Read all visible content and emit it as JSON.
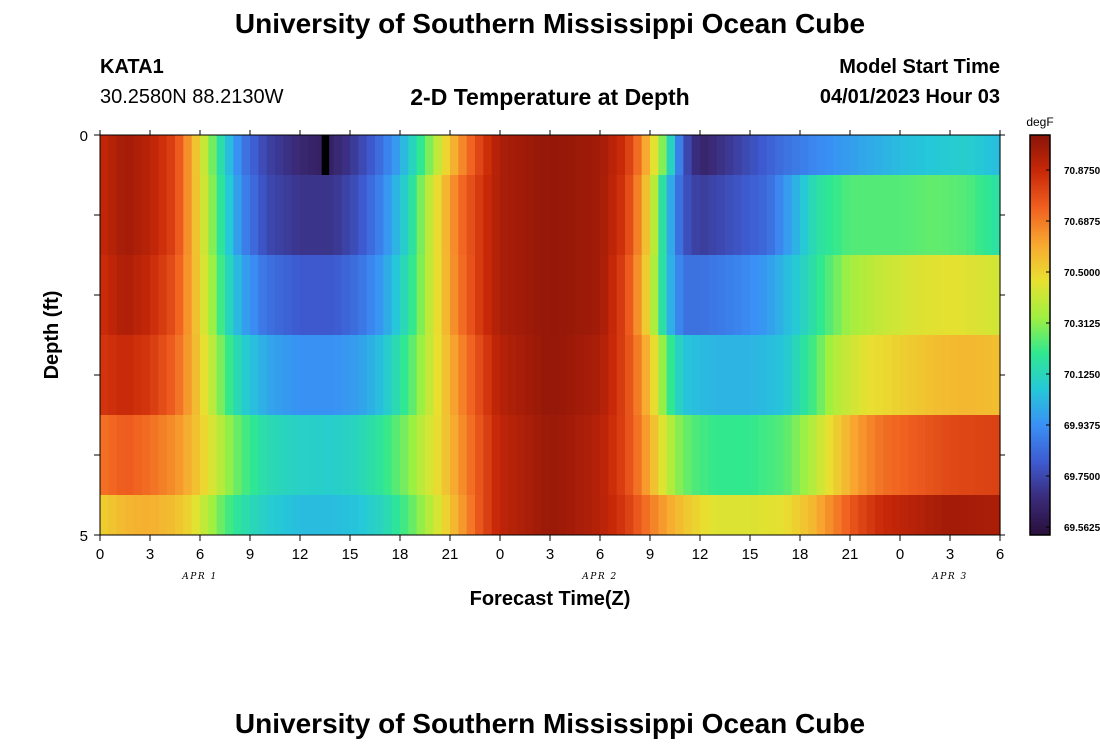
{
  "header": {
    "title": "University of Southern Mississippi Ocean Cube",
    "station_id": "KATA1",
    "coordinates": "30.2580N  88.2130W",
    "subtitle": "2-D Temperature at Depth",
    "model_start_label": "Model Start Time",
    "model_start_value": "04/01/2023 Hour 03"
  },
  "footer": {
    "title": "University of Southern Mississippi Ocean Cube"
  },
  "colors": {
    "scale": [
      "#2a0f3a",
      "#3a2a78",
      "#3e5ad0",
      "#3a8ff5",
      "#25c8d8",
      "#30e890",
      "#a0f040",
      "#e8e030",
      "#f8a830",
      "#f06020",
      "#c82808",
      "#8a1408"
    ]
  },
  "chart_data": {
    "type": "heatmap",
    "title": "2-D Temperature at Depth",
    "xlabel": "Forecast Time(Z)",
    "ylabel": "Depth (ft)",
    "x_tick_labels": [
      "0",
      "3",
      "6",
      "9",
      "12",
      "15",
      "18",
      "21",
      "0",
      "3",
      "6",
      "9",
      "12",
      "15",
      "18",
      "21",
      "0",
      "3",
      "6"
    ],
    "date_labels": [
      {
        "label": "APR 1",
        "hour": 6
      },
      {
        "label": "APR 2",
        "hour": 30
      },
      {
        "label": "APR 3",
        "hour": 51
      }
    ],
    "x_range_hours": [
      0,
      54
    ],
    "y_tick_labels": [
      "0",
      "5"
    ],
    "y_range_ft": [
      0,
      5
    ],
    "depth_rows_ft": [
      0.25,
      1.0,
      2.0,
      3.0,
      4.0,
      4.75
    ],
    "colorbar": {
      "units": "degF",
      "labels": [
        "70.8750",
        "70.6875",
        "70.5000",
        "70.3125",
        "70.1250",
        "69.9375",
        "69.7500",
        "69.5625"
      ],
      "min": 69.5,
      "max": 70.95
    },
    "profiles": [
      {
        "depth_row": 0,
        "points": [
          [
            0,
            70.82
          ],
          [
            1.5,
            70.9
          ],
          [
            3,
            70.85
          ],
          [
            4.5,
            70.75
          ],
          [
            5.5,
            70.55
          ],
          [
            6.5,
            70.3
          ],
          [
            7.5,
            70.05
          ],
          [
            8.5,
            69.85
          ],
          [
            10,
            69.7
          ],
          [
            12,
            69.62
          ],
          [
            13.5,
            69.58
          ],
          [
            15,
            69.66
          ],
          [
            16.5,
            69.78
          ],
          [
            18,
            69.95
          ],
          [
            19.5,
            70.2
          ],
          [
            20.5,
            70.4
          ],
          [
            21.5,
            70.58
          ],
          [
            23,
            70.78
          ],
          [
            24,
            70.88
          ],
          [
            27,
            70.93
          ],
          [
            30,
            70.9
          ],
          [
            31.5,
            70.8
          ],
          [
            32.5,
            70.62
          ],
          [
            33.5,
            70.35
          ],
          [
            34.3,
            70.05
          ],
          [
            35,
            69.75
          ],
          [
            36,
            69.6
          ],
          [
            37,
            69.64
          ],
          [
            39,
            69.73
          ],
          [
            41,
            69.82
          ],
          [
            43,
            69.88
          ],
          [
            45,
            69.93
          ],
          [
            48,
            70.0
          ],
          [
            50,
            70.03
          ],
          [
            52,
            70.05
          ],
          [
            54,
            70.0
          ]
        ]
      },
      {
        "depth_row": 1,
        "points": [
          [
            0,
            70.82
          ],
          [
            1.5,
            70.9
          ],
          [
            3,
            70.85
          ],
          [
            4.5,
            70.75
          ],
          [
            5.5,
            70.55
          ],
          [
            6.5,
            70.32
          ],
          [
            7.5,
            70.08
          ],
          [
            8.5,
            69.88
          ],
          [
            10,
            69.72
          ],
          [
            12,
            69.66
          ],
          [
            14,
            69.66
          ],
          [
            15.5,
            69.74
          ],
          [
            17,
            69.88
          ],
          [
            18.5,
            70.08
          ],
          [
            19.5,
            70.3
          ],
          [
            20.5,
            70.48
          ],
          [
            21.5,
            70.65
          ],
          [
            23,
            70.8
          ],
          [
            24,
            70.88
          ],
          [
            27,
            70.93
          ],
          [
            30,
            70.9
          ],
          [
            31.5,
            70.78
          ],
          [
            32.5,
            70.58
          ],
          [
            33.3,
            70.32
          ],
          [
            34,
            70.02
          ],
          [
            35,
            69.75
          ],
          [
            36,
            69.68
          ],
          [
            38,
            69.74
          ],
          [
            40,
            69.8
          ],
          [
            41.5,
            69.95
          ],
          [
            43,
            70.12
          ],
          [
            45,
            70.2
          ],
          [
            48,
            70.2
          ],
          [
            50,
            70.22
          ],
          [
            52,
            70.2
          ],
          [
            54,
            70.12
          ]
        ]
      },
      {
        "depth_row": 2,
        "points": [
          [
            0,
            70.8
          ],
          [
            1.5,
            70.88
          ],
          [
            3,
            70.82
          ],
          [
            4.5,
            70.72
          ],
          [
            5.5,
            70.55
          ],
          [
            6.5,
            70.34
          ],
          [
            7.5,
            70.12
          ],
          [
            8.5,
            69.95
          ],
          [
            10,
            69.82
          ],
          [
            12,
            69.76
          ],
          [
            14,
            69.76
          ],
          [
            15.5,
            69.82
          ],
          [
            17,
            69.93
          ],
          [
            18.5,
            70.12
          ],
          [
            19.5,
            70.3
          ],
          [
            20.5,
            70.48
          ],
          [
            21.5,
            70.64
          ],
          [
            23,
            70.8
          ],
          [
            24,
            70.88
          ],
          [
            27,
            70.93
          ],
          [
            30,
            70.9
          ],
          [
            31.5,
            70.75
          ],
          [
            32.5,
            70.55
          ],
          [
            33.3,
            70.3
          ],
          [
            34,
            70.02
          ],
          [
            35,
            69.82
          ],
          [
            36,
            69.82
          ],
          [
            38,
            69.86
          ],
          [
            40,
            69.92
          ],
          [
            42,
            70.05
          ],
          [
            43.5,
            70.18
          ],
          [
            45,
            70.3
          ],
          [
            47,
            70.36
          ],
          [
            49,
            70.4
          ],
          [
            51,
            70.42
          ],
          [
            54,
            70.38
          ]
        ]
      },
      {
        "depth_row": 3,
        "points": [
          [
            0,
            70.78
          ],
          [
            1.5,
            70.82
          ],
          [
            3,
            70.78
          ],
          [
            4.5,
            70.68
          ],
          [
            5.5,
            70.55
          ],
          [
            6.5,
            70.38
          ],
          [
            7.5,
            70.2
          ],
          [
            8.5,
            70.06
          ],
          [
            10,
            69.95
          ],
          [
            12,
            69.9
          ],
          [
            14,
            69.9
          ],
          [
            15.5,
            69.93
          ],
          [
            17,
            70.02
          ],
          [
            18.5,
            70.18
          ],
          [
            19.5,
            70.32
          ],
          [
            20.5,
            70.46
          ],
          [
            21.5,
            70.6
          ],
          [
            23,
            70.76
          ],
          [
            24,
            70.86
          ],
          [
            27,
            70.93
          ],
          [
            30,
            70.88
          ],
          [
            31.5,
            70.75
          ],
          [
            32.5,
            70.6
          ],
          [
            33.3,
            70.42
          ],
          [
            34,
            70.2
          ],
          [
            35,
            70.02
          ],
          [
            37,
            69.98
          ],
          [
            39,
            69.98
          ],
          [
            41,
            70.02
          ],
          [
            42.5,
            70.15
          ],
          [
            44,
            70.32
          ],
          [
            46,
            70.42
          ],
          [
            48,
            70.46
          ],
          [
            50,
            70.5
          ],
          [
            52,
            70.52
          ],
          [
            54,
            70.5
          ]
        ]
      },
      {
        "depth_row": 4,
        "points": [
          [
            0,
            70.65
          ],
          [
            1.5,
            70.7
          ],
          [
            3,
            70.66
          ],
          [
            4.5,
            70.6
          ],
          [
            5.5,
            70.52
          ],
          [
            6.5,
            70.42
          ],
          [
            7.5,
            70.3
          ],
          [
            8.5,
            70.2
          ],
          [
            10,
            70.1
          ],
          [
            12,
            70.06
          ],
          [
            14,
            70.05
          ],
          [
            15.5,
            70.08
          ],
          [
            17,
            70.15
          ],
          [
            18.5,
            70.26
          ],
          [
            19.5,
            70.36
          ],
          [
            20.5,
            70.46
          ],
          [
            21.5,
            70.58
          ],
          [
            23,
            70.74
          ],
          [
            24,
            70.84
          ],
          [
            27,
            70.92
          ],
          [
            30,
            70.86
          ],
          [
            31.5,
            70.75
          ],
          [
            32.5,
            70.62
          ],
          [
            33.5,
            70.45
          ],
          [
            34.5,
            70.28
          ],
          [
            35.5,
            70.2
          ],
          [
            37,
            70.16
          ],
          [
            39,
            70.16
          ],
          [
            41,
            70.2
          ],
          [
            42.5,
            70.3
          ],
          [
            44,
            70.45
          ],
          [
            45.5,
            70.58
          ],
          [
            47,
            70.66
          ],
          [
            49,
            70.7
          ],
          [
            51,
            70.74
          ],
          [
            54,
            70.76
          ]
        ]
      },
      {
        "depth_row": 5,
        "points": [
          [
            0,
            70.46
          ],
          [
            1.5,
            70.52
          ],
          [
            3,
            70.54
          ],
          [
            4.5,
            70.5
          ],
          [
            5.5,
            70.44
          ],
          [
            6.5,
            70.32
          ],
          [
            7.5,
            70.2
          ],
          [
            8.5,
            70.12
          ],
          [
            10,
            70.05
          ],
          [
            12,
            70.0
          ],
          [
            14,
            70.0
          ],
          [
            15.5,
            70.02
          ],
          [
            17,
            70.08
          ],
          [
            18.5,
            70.2
          ],
          [
            19.5,
            70.3
          ],
          [
            20.5,
            70.42
          ],
          [
            21.5,
            70.55
          ],
          [
            23,
            70.74
          ],
          [
            24,
            70.84
          ],
          [
            27,
            70.92
          ],
          [
            30,
            70.86
          ],
          [
            31.5,
            70.78
          ],
          [
            32.5,
            70.68
          ],
          [
            34,
            70.56
          ],
          [
            35.5,
            70.46
          ],
          [
            37,
            70.4
          ],
          [
            39,
            70.4
          ],
          [
            41,
            70.42
          ],
          [
            42.5,
            70.5
          ],
          [
            44,
            70.62
          ],
          [
            45.5,
            70.74
          ],
          [
            47,
            70.82
          ],
          [
            49,
            70.86
          ],
          [
            51,
            70.9
          ],
          [
            54,
            70.88
          ]
        ]
      }
    ],
    "anomaly": {
      "hour": 13.5,
      "depth_row": 0,
      "value": "missing"
    }
  }
}
